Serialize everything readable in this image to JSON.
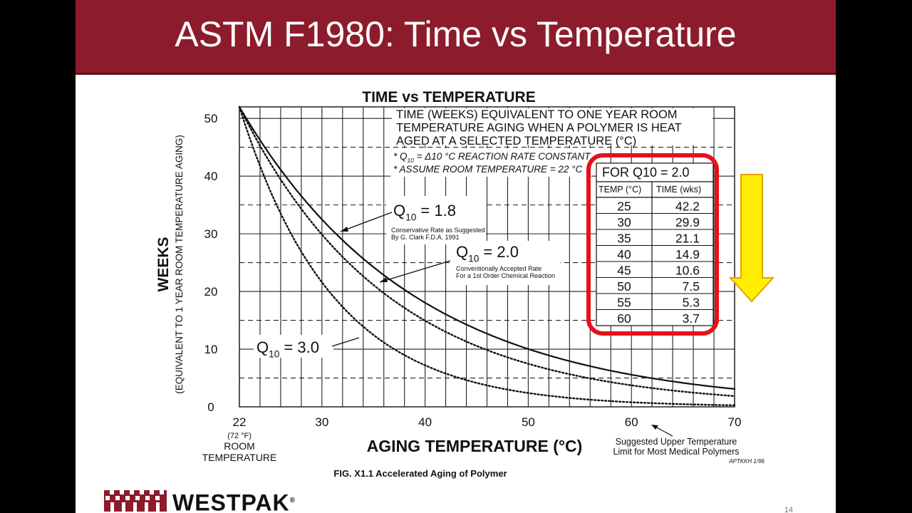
{
  "slide": {
    "title": "ASTM F1980: Time vs Temperature",
    "page_number": "14"
  },
  "logo": {
    "text": "WESTPAK",
    "registered": "®"
  },
  "chart_data": {
    "type": "line",
    "title": "TIME vs TEMPERATURE",
    "xlabel": "AGING TEMPERATURE (°C)",
    "ylabel": "WEEKS",
    "ylabel_sub": "(EQUIVALENT TO 1 YEAR ROOM TEMPERATURE AGING)",
    "xlim": [
      22,
      70
    ],
    "ylim": [
      0,
      52
    ],
    "x_ticks": [
      "22",
      "30",
      "40",
      "50",
      "60",
      "70"
    ],
    "y_ticks": [
      "0",
      "10",
      "20",
      "30",
      "40",
      "50"
    ],
    "x_tick_values": [
      22,
      30,
      40,
      50,
      60,
      70
    ],
    "y_tick_values": [
      0,
      10,
      20,
      30,
      40,
      50
    ],
    "x_note": [
      "(72 °F)",
      "ROOM",
      "TEMPERATURE"
    ],
    "grid": true,
    "description_lines": [
      "TIME (WEEKS) EQUIVALENT TO ONE YEAR ROOM",
      "TEMPERATURE AGING WHEN A POLYMER IS HEAT",
      "AGED AT A SELECTED TEMPERATURE (°C)"
    ],
    "assumption_lines": [
      "* Q10 = Δ10 °C REACTION RATE CONSTANT",
      "* ASSUME ROOM TEMPERATURE = 22 °C"
    ],
    "series": [
      {
        "name": "Q10 = 1.8",
        "q10": 1.8,
        "style": "solid",
        "note_lines": [
          "Conservative Rate as Suggested",
          "By G. Clark F.D.A. 1991"
        ]
      },
      {
        "name": "Q10 = 2.0",
        "q10": 2.0,
        "style": "dotted",
        "note_lines": [
          "Conventionally Accepted Rate",
          "For a 1st Order Chemical Reaction"
        ]
      },
      {
        "name": "Q10 = 3.0",
        "q10": 3.0,
        "style": "dotted",
        "note_lines": []
      }
    ],
    "upper_limit_note": [
      "Suggested Upper Temperature",
      "Limit for Most Medical Polymers"
    ],
    "figure_caption": "FIG. X1.1 Accelerated Aging of Polymer",
    "figure_code": "APTKKH 1/96",
    "table": {
      "title": "FOR Q10 = 2.0",
      "headers": [
        "TEMP (°C)",
        "TIME (wks)"
      ],
      "rows": [
        [
          "25",
          "42.2"
        ],
        [
          "30",
          "29.9"
        ],
        [
          "35",
          "21.1"
        ],
        [
          "40",
          "14.9"
        ],
        [
          "45",
          "10.6"
        ],
        [
          "50",
          "7.5"
        ],
        [
          "55",
          "5.3"
        ],
        [
          "60",
          "3.7"
        ]
      ]
    },
    "highlight_color": "#e8101a",
    "arrow_color": "#ffee00"
  }
}
